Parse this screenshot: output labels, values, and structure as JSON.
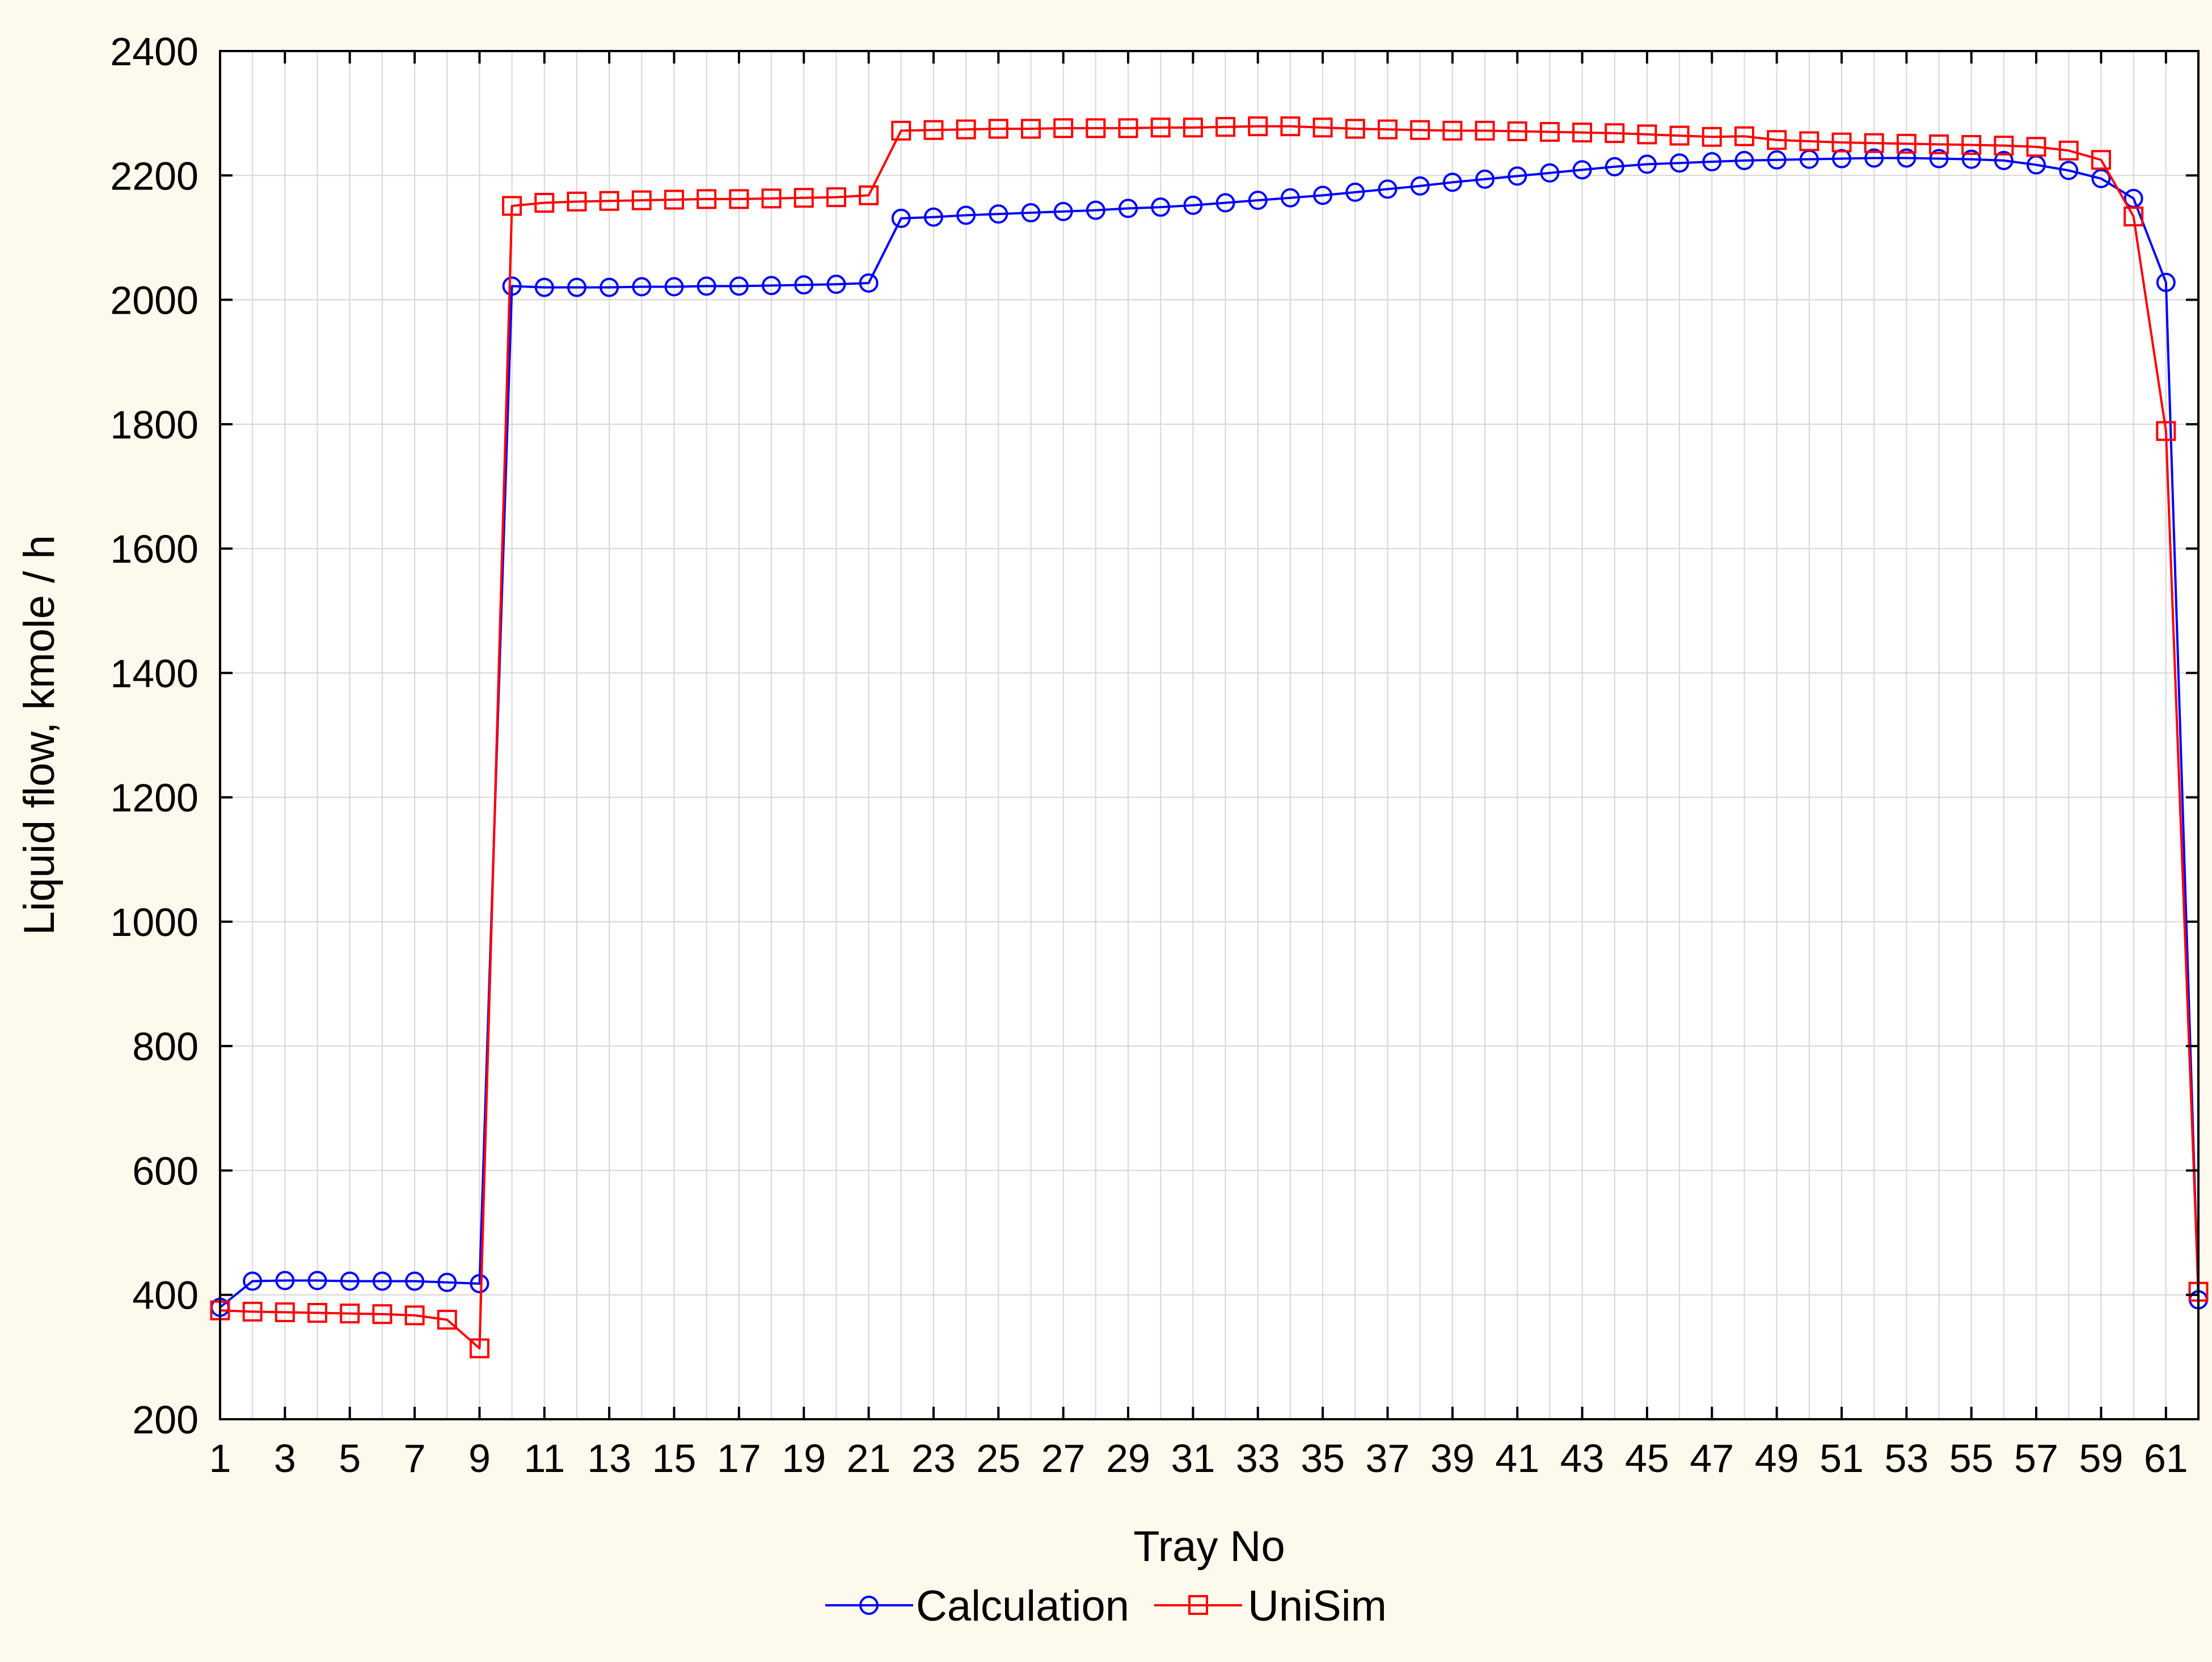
{
  "chart_data": {
    "type": "line",
    "xlabel": "Tray No",
    "ylabel": "Liquid flow, kmole / h",
    "xlim": [
      1,
      62
    ],
    "ylim": [
      200,
      2400
    ],
    "x_ticks": [
      1,
      3,
      5,
      7,
      9,
      11,
      13,
      15,
      17,
      19,
      21,
      23,
      25,
      27,
      29,
      31,
      33,
      35,
      37,
      39,
      41,
      43,
      45,
      47,
      49,
      51,
      53,
      55,
      57,
      59,
      61
    ],
    "y_ticks": [
      200,
      400,
      600,
      800,
      1000,
      1200,
      1400,
      1600,
      1800,
      2000,
      2200,
      2400
    ],
    "grid": true,
    "legend_position": "bottom-center",
    "x": [
      1,
      2,
      3,
      4,
      5,
      6,
      7,
      8,
      9,
      10,
      11,
      12,
      13,
      14,
      15,
      16,
      17,
      18,
      19,
      20,
      21,
      22,
      23,
      24,
      25,
      26,
      27,
      28,
      29,
      30,
      31,
      32,
      33,
      34,
      35,
      36,
      37,
      38,
      39,
      40,
      41,
      42,
      43,
      44,
      45,
      46,
      47,
      48,
      49,
      50,
      51,
      52,
      53,
      54,
      55,
      56,
      57,
      58,
      59,
      60,
      61,
      62
    ],
    "series": [
      {
        "name": "Calculation",
        "color": "#0000ff",
        "marker": "circle",
        "values": [
          380,
          422,
          423,
          423,
          422,
          422,
          422,
          420,
          418,
          2022,
          2020,
          2020,
          2020,
          2021,
          2021,
          2022,
          2022,
          2023,
          2024,
          2025,
          2027,
          2131,
          2133,
          2136,
          2138,
          2140,
          2142,
          2144,
          2147,
          2149,
          2152,
          2156,
          2160,
          2164,
          2168,
          2173,
          2178,
          2183,
          2189,
          2194,
          2199,
          2204,
          2209,
          2214,
          2218,
          2220,
          2222,
          2224,
          2225,
          2226,
          2227,
          2228,
          2228,
          2227,
          2226,
          2224,
          2217,
          2208,
          2195,
          2163,
          2028,
          392
        ]
      },
      {
        "name": "UniSim",
        "color": "#ff0000",
        "marker": "square",
        "values": [
          375,
          373,
          372,
          371,
          370,
          369,
          367,
          360,
          314,
          2151,
          2156,
          2158,
          2159,
          2160,
          2161,
          2162,
          2162,
          2163,
          2164,
          2165,
          2168,
          2272,
          2273,
          2274,
          2275,
          2275,
          2276,
          2276,
          2276,
          2277,
          2277,
          2278,
          2279,
          2279,
          2277,
          2275,
          2274,
          2273,
          2272,
          2272,
          2271,
          2270,
          2269,
          2268,
          2266,
          2264,
          2262,
          2263,
          2257,
          2255,
          2253,
          2252,
          2251,
          2250,
          2249,
          2248,
          2246,
          2240,
          2225,
          2134,
          1789,
          405
        ]
      }
    ]
  }
}
